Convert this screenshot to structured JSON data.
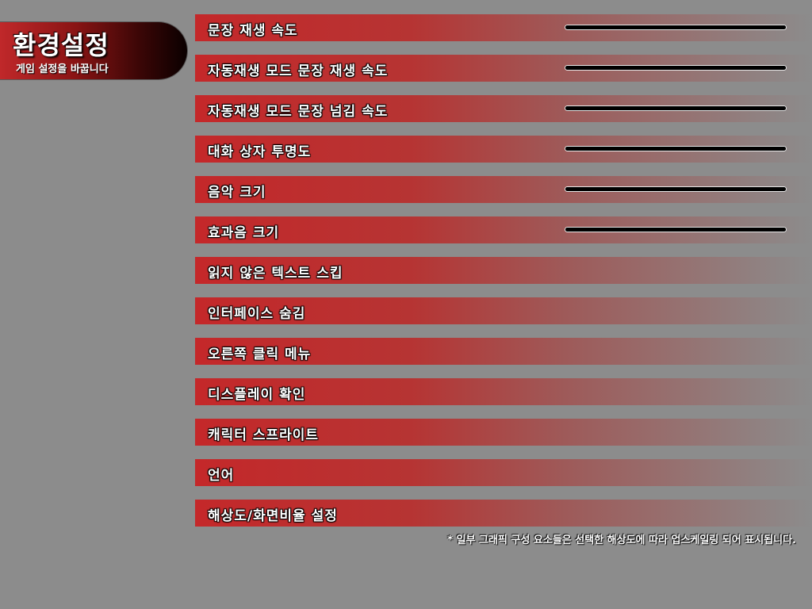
{
  "header": {
    "title": "환경설정",
    "subtitle": "게임 설정을 바꿉니다"
  },
  "options": [
    {
      "label": "문장 재생 속도",
      "has_slider": true,
      "slider_value": 1.0
    },
    {
      "label": "자동재생 모드 문장 재생 속도",
      "has_slider": true,
      "slider_value": 1.0
    },
    {
      "label": "자동재생 모드 문장 넘김 속도",
      "has_slider": true,
      "slider_value": 1.0
    },
    {
      "label": "대화 상자 투명도",
      "has_slider": true,
      "slider_value": 1.0
    },
    {
      "label": "음악 크기",
      "has_slider": true,
      "slider_value": 1.0
    },
    {
      "label": "효과음 크기",
      "has_slider": true,
      "slider_value": 1.0
    },
    {
      "label": "읽지 않은 텍스트 스킵",
      "has_slider": false
    },
    {
      "label": "인터페이스 숨김",
      "has_slider": false
    },
    {
      "label": "오른쪽 클릭 메뉴",
      "has_slider": false
    },
    {
      "label": "디스플레이 확인",
      "has_slider": false
    },
    {
      "label": "캐릭터 스프라이트",
      "has_slider": false
    },
    {
      "label": "언어",
      "has_slider": false
    },
    {
      "label": "해상도/화면비율 설정",
      "has_slider": false
    }
  ],
  "footnote": "* 일부 그래픽 구성 요소들은 선택한 해상도에 따라 업스케일링 되어 표시됩니다.",
  "colors": {
    "background": "#8c8c8c",
    "row_accent": "#c4282a",
    "slider_track": "#050505"
  }
}
